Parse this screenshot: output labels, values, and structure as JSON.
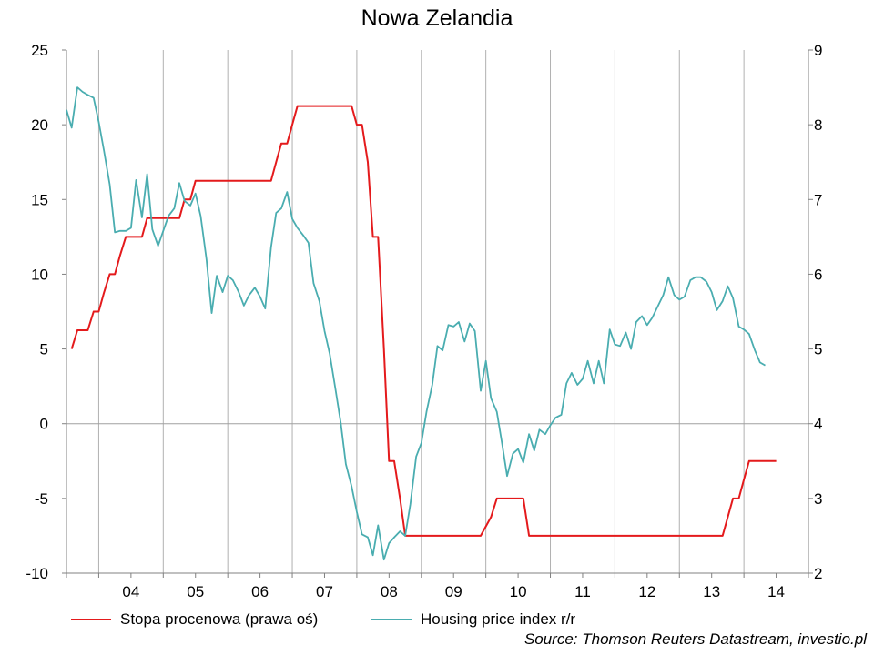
{
  "chart_data": {
    "type": "line",
    "title": "Nowa Zelandia",
    "source": "Source: Thomson Reuters Datastream, investio.pl",
    "x_tick_labels": [
      "04",
      "05",
      "06",
      "07",
      "08",
      "09",
      "10",
      "11",
      "12",
      "13",
      "14"
    ],
    "x_range": [
      2003.5,
      2015.0
    ],
    "left_axis": {
      "ticks": [
        "25",
        "20",
        "15",
        "10",
        "5",
        "0",
        "-5",
        "-10"
      ],
      "ylim": [
        -10,
        25
      ]
    },
    "right_axis": {
      "ticks": [
        "9",
        "8",
        "7",
        "6",
        "5",
        "4",
        "3",
        "2"
      ],
      "ylim": [
        2,
        9
      ]
    },
    "grid": "vertical year lines",
    "legend_position": "bottom",
    "colors": {
      "rate": "#e41a1c",
      "hpi": "#4aadb0",
      "grid": "#b0b0b0",
      "axis": "#808080"
    },
    "series": [
      {
        "name": "Stopa procenowa (prawa oś)",
        "axis": "right",
        "points": [
          [
            2003.58,
            5.0
          ],
          [
            2003.67,
            5.25
          ],
          [
            2003.83,
            5.25
          ],
          [
            2003.92,
            5.5
          ],
          [
            2004.0,
            5.5
          ],
          [
            2004.08,
            5.75
          ],
          [
            2004.17,
            6.0
          ],
          [
            2004.25,
            6.0
          ],
          [
            2004.33,
            6.25
          ],
          [
            2004.42,
            6.5
          ],
          [
            2004.67,
            6.5
          ],
          [
            2004.75,
            6.75
          ],
          [
            2005.25,
            6.75
          ],
          [
            2005.33,
            7.0
          ],
          [
            2005.42,
            7.0
          ],
          [
            2005.5,
            7.25
          ],
          [
            2006.67,
            7.25
          ],
          [
            2006.75,
            7.5
          ],
          [
            2006.83,
            7.75
          ],
          [
            2006.92,
            7.75
          ],
          [
            2007.0,
            8.0
          ],
          [
            2007.08,
            8.25
          ],
          [
            2007.92,
            8.25
          ],
          [
            2008.0,
            8.0
          ],
          [
            2008.08,
            8.0
          ],
          [
            2008.17,
            7.5
          ],
          [
            2008.25,
            6.5
          ],
          [
            2008.33,
            6.5
          ],
          [
            2008.42,
            5.0
          ],
          [
            2008.5,
            3.5
          ],
          [
            2008.58,
            3.5
          ],
          [
            2008.67,
            3.0
          ],
          [
            2008.75,
            2.5
          ],
          [
            2009.92,
            2.5
          ],
          [
            2010.08,
            2.75
          ],
          [
            2010.17,
            3.0
          ],
          [
            2010.58,
            3.0
          ],
          [
            2010.67,
            2.5
          ],
          [
            2013.67,
            2.5
          ],
          [
            2013.75,
            2.75
          ],
          [
            2013.83,
            3.0
          ],
          [
            2013.92,
            3.0
          ],
          [
            2014.0,
            3.25
          ],
          [
            2014.08,
            3.5
          ],
          [
            2014.5,
            3.5
          ]
        ]
      },
      {
        "name": "Housing price index r/r",
        "axis": "left",
        "points": [
          [
            2003.5,
            21.0
          ],
          [
            2003.58,
            19.8
          ],
          [
            2003.67,
            22.5
          ],
          [
            2003.75,
            22.2
          ],
          [
            2003.83,
            22.0
          ],
          [
            2003.92,
            21.8
          ],
          [
            2004.0,
            20.2
          ],
          [
            2004.08,
            18.3
          ],
          [
            2004.17,
            16.0
          ],
          [
            2004.25,
            12.8
          ],
          [
            2004.33,
            12.9
          ],
          [
            2004.42,
            12.9
          ],
          [
            2004.5,
            13.1
          ],
          [
            2004.58,
            16.3
          ],
          [
            2004.67,
            13.8
          ],
          [
            2004.75,
            16.7
          ],
          [
            2004.83,
            13.0
          ],
          [
            2004.92,
            11.9
          ],
          [
            2005.0,
            12.9
          ],
          [
            2005.08,
            13.9
          ],
          [
            2005.17,
            14.4
          ],
          [
            2005.25,
            16.1
          ],
          [
            2005.33,
            14.9
          ],
          [
            2005.42,
            14.6
          ],
          [
            2005.5,
            15.4
          ],
          [
            2005.58,
            13.9
          ],
          [
            2005.67,
            11.0
          ],
          [
            2005.75,
            7.4
          ],
          [
            2005.83,
            9.9
          ],
          [
            2005.92,
            8.8
          ],
          [
            2006.0,
            9.9
          ],
          [
            2006.08,
            9.6
          ],
          [
            2006.17,
            8.8
          ],
          [
            2006.25,
            7.9
          ],
          [
            2006.33,
            8.6
          ],
          [
            2006.42,
            9.1
          ],
          [
            2006.5,
            8.5
          ],
          [
            2006.58,
            7.7
          ],
          [
            2006.67,
            11.8
          ],
          [
            2006.75,
            14.1
          ],
          [
            2006.83,
            14.4
          ],
          [
            2006.92,
            15.5
          ],
          [
            2007.0,
            13.7
          ],
          [
            2007.08,
            13.1
          ],
          [
            2007.17,
            12.6
          ],
          [
            2007.25,
            12.1
          ],
          [
            2007.33,
            9.4
          ],
          [
            2007.42,
            8.2
          ],
          [
            2007.5,
            6.2
          ],
          [
            2007.58,
            4.7
          ],
          [
            2007.67,
            2.3
          ],
          [
            2007.75,
            0.1
          ],
          [
            2007.83,
            -2.7
          ],
          [
            2007.92,
            -4.2
          ],
          [
            2008.0,
            -5.9
          ],
          [
            2008.08,
            -7.4
          ],
          [
            2008.17,
            -7.6
          ],
          [
            2008.25,
            -8.8
          ],
          [
            2008.33,
            -6.8
          ],
          [
            2008.42,
            -9.1
          ],
          [
            2008.5,
            -8.0
          ],
          [
            2008.58,
            -7.6
          ],
          [
            2008.67,
            -7.2
          ],
          [
            2008.75,
            -7.5
          ],
          [
            2008.83,
            -5.4
          ],
          [
            2008.92,
            -2.2
          ],
          [
            2009.0,
            -1.3
          ],
          [
            2009.08,
            0.8
          ],
          [
            2009.17,
            2.6
          ],
          [
            2009.25,
            5.2
          ],
          [
            2009.33,
            4.9
          ],
          [
            2009.42,
            6.6
          ],
          [
            2009.5,
            6.5
          ],
          [
            2009.58,
            6.8
          ],
          [
            2009.67,
            5.5
          ],
          [
            2009.75,
            6.7
          ],
          [
            2009.83,
            6.2
          ],
          [
            2009.92,
            2.2
          ],
          [
            2010.0,
            4.2
          ],
          [
            2010.08,
            1.7
          ],
          [
            2010.17,
            0.8
          ],
          [
            2010.25,
            -1.3
          ],
          [
            2010.33,
            -3.5
          ],
          [
            2010.42,
            -2.0
          ],
          [
            2010.5,
            -1.7
          ],
          [
            2010.58,
            -2.6
          ],
          [
            2010.67,
            -0.7
          ],
          [
            2010.75,
            -1.8
          ],
          [
            2010.83,
            -0.4
          ],
          [
            2010.92,
            -0.7
          ],
          [
            2011.0,
            -0.1
          ],
          [
            2011.08,
            0.4
          ],
          [
            2011.17,
            0.6
          ],
          [
            2011.25,
            2.7
          ],
          [
            2011.33,
            3.4
          ],
          [
            2011.42,
            2.6
          ],
          [
            2011.5,
            3.0
          ],
          [
            2011.58,
            4.2
          ],
          [
            2011.67,
            2.7
          ],
          [
            2011.75,
            4.2
          ],
          [
            2011.83,
            2.7
          ],
          [
            2011.92,
            6.3
          ],
          [
            2012.0,
            5.3
          ],
          [
            2012.08,
            5.2
          ],
          [
            2012.17,
            6.1
          ],
          [
            2012.25,
            5.0
          ],
          [
            2012.33,
            6.8
          ],
          [
            2012.42,
            7.2
          ],
          [
            2012.5,
            6.6
          ],
          [
            2012.58,
            7.1
          ],
          [
            2012.67,
            7.9
          ],
          [
            2012.75,
            8.6
          ],
          [
            2012.83,
            9.8
          ],
          [
            2012.92,
            8.6
          ],
          [
            2013.0,
            8.3
          ],
          [
            2013.08,
            8.5
          ],
          [
            2013.17,
            9.6
          ],
          [
            2013.25,
            9.8
          ],
          [
            2013.33,
            9.8
          ],
          [
            2013.42,
            9.5
          ],
          [
            2013.5,
            8.8
          ],
          [
            2013.58,
            7.6
          ],
          [
            2013.67,
            8.2
          ],
          [
            2013.75,
            9.2
          ],
          [
            2013.83,
            8.4
          ],
          [
            2013.92,
            6.5
          ],
          [
            2014.0,
            6.3
          ],
          [
            2014.08,
            6.0
          ],
          [
            2014.17,
            4.9
          ],
          [
            2014.25,
            4.1
          ],
          [
            2014.33,
            3.9
          ]
        ]
      }
    ]
  }
}
